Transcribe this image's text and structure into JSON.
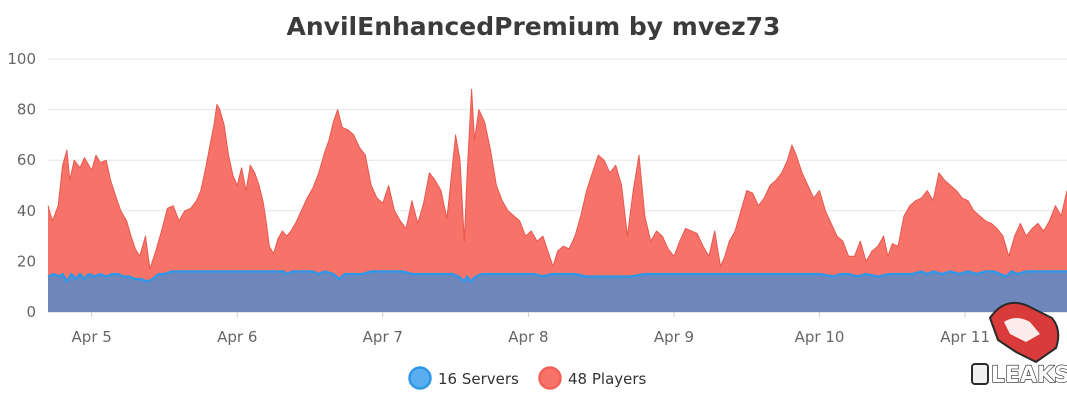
{
  "chart_data": {
    "type": "area",
    "title": "AnvilEnhancedPremium by mvez73",
    "ylim": [
      0,
      100
    ],
    "y_ticks": [
      0,
      20,
      40,
      60,
      80,
      100
    ],
    "xlim": [
      4.7,
      11.7
    ],
    "x_ticks": [
      {
        "value": 5,
        "label": "Apr 5"
      },
      {
        "value": 6,
        "label": "Apr 6"
      },
      {
        "value": 7,
        "label": "Apr 7"
      },
      {
        "value": 8,
        "label": "Apr 8"
      },
      {
        "value": 9,
        "label": "Apr 9"
      },
      {
        "value": 10,
        "label": "Apr 10"
      },
      {
        "value": 11,
        "label": "Apr 11"
      }
    ],
    "grid": true,
    "legend_position": "bottom-center",
    "series": [
      {
        "name": "Players",
        "legend_label": "48 Players",
        "color": "#f7736a",
        "points": [
          [
            4.7,
            42
          ],
          [
            4.73,
            36
          ],
          [
            4.77,
            42
          ],
          [
            4.8,
            58
          ],
          [
            4.83,
            64
          ],
          [
            4.85,
            52
          ],
          [
            4.88,
            60
          ],
          [
            4.92,
            57
          ],
          [
            4.95,
            61
          ],
          [
            4.98,
            58
          ],
          [
            5.0,
            56
          ],
          [
            5.03,
            62
          ],
          [
            5.06,
            59
          ],
          [
            5.1,
            60
          ],
          [
            5.13,
            52
          ],
          [
            5.17,
            45
          ],
          [
            5.2,
            40
          ],
          [
            5.24,
            36
          ],
          [
            5.27,
            30
          ],
          [
            5.3,
            25
          ],
          [
            5.33,
            22
          ],
          [
            5.37,
            30
          ],
          [
            5.4,
            17
          ],
          [
            5.44,
            24
          ],
          [
            5.48,
            32
          ],
          [
            5.52,
            41
          ],
          [
            5.56,
            42
          ],
          [
            5.6,
            36
          ],
          [
            5.64,
            40
          ],
          [
            5.68,
            41
          ],
          [
            5.72,
            44
          ],
          [
            5.75,
            48
          ],
          [
            5.78,
            56
          ],
          [
            5.81,
            65
          ],
          [
            5.84,
            74
          ],
          [
            5.86,
            82
          ],
          [
            5.88,
            80
          ],
          [
            5.91,
            74
          ],
          [
            5.94,
            62
          ],
          [
            5.97,
            54
          ],
          [
            6.0,
            50
          ],
          [
            6.03,
            57
          ],
          [
            6.06,
            48
          ],
          [
            6.09,
            58
          ],
          [
            6.12,
            55
          ],
          [
            6.15,
            50
          ],
          [
            6.18,
            43
          ],
          [
            6.2,
            35
          ],
          [
            6.22,
            26
          ],
          [
            6.25,
            23
          ],
          [
            6.28,
            29
          ],
          [
            6.31,
            32
          ],
          [
            6.34,
            30
          ],
          [
            6.37,
            32
          ],
          [
            6.4,
            35
          ],
          [
            6.44,
            40
          ],
          [
            6.48,
            45
          ],
          [
            6.52,
            49
          ],
          [
            6.56,
            55
          ],
          [
            6.6,
            63
          ],
          [
            6.63,
            68
          ],
          [
            6.66,
            75
          ],
          [
            6.69,
            80
          ],
          [
            6.72,
            73
          ],
          [
            6.76,
            72
          ],
          [
            6.8,
            70
          ],
          [
            6.84,
            65
          ],
          [
            6.88,
            62
          ],
          [
            6.92,
            50
          ],
          [
            6.96,
            45
          ],
          [
            7.0,
            43
          ],
          [
            7.04,
            50
          ],
          [
            7.08,
            40
          ],
          [
            7.12,
            36
          ],
          [
            7.16,
            33
          ],
          [
            7.2,
            44
          ],
          [
            7.24,
            35
          ],
          [
            7.28,
            43
          ],
          [
            7.32,
            55
          ],
          [
            7.36,
            52
          ],
          [
            7.4,
            48
          ],
          [
            7.44,
            37
          ],
          [
            7.47,
            53
          ],
          [
            7.5,
            70
          ],
          [
            7.53,
            60
          ],
          [
            7.56,
            28
          ],
          [
            7.58,
            55
          ],
          [
            7.61,
            88
          ],
          [
            7.63,
            68
          ],
          [
            7.66,
            80
          ],
          [
            7.7,
            75
          ],
          [
            7.74,
            64
          ],
          [
            7.78,
            50
          ],
          [
            7.82,
            44
          ],
          [
            7.86,
            40
          ],
          [
            7.9,
            38
          ],
          [
            7.94,
            36
          ],
          [
            7.98,
            30
          ],
          [
            8.02,
            32
          ],
          [
            8.06,
            28
          ],
          [
            8.1,
            30
          ],
          [
            8.14,
            23
          ],
          [
            8.17,
            18
          ],
          [
            8.2,
            24
          ],
          [
            8.24,
            26
          ],
          [
            8.28,
            25
          ],
          [
            8.32,
            30
          ],
          [
            8.36,
            38
          ],
          [
            8.4,
            48
          ],
          [
            8.44,
            55
          ],
          [
            8.48,
            62
          ],
          [
            8.52,
            60
          ],
          [
            8.56,
            55
          ],
          [
            8.6,
            58
          ],
          [
            8.64,
            50
          ],
          [
            8.68,
            30
          ],
          [
            8.72,
            48
          ],
          [
            8.76,
            62
          ],
          [
            8.8,
            38
          ],
          [
            8.84,
            28
          ],
          [
            8.88,
            32
          ],
          [
            8.92,
            30
          ],
          [
            8.96,
            25
          ],
          [
            9.0,
            22
          ],
          [
            9.04,
            28
          ],
          [
            9.08,
            33
          ],
          [
            9.12,
            32
          ],
          [
            9.16,
            31
          ],
          [
            9.2,
            26
          ],
          [
            9.24,
            22
          ],
          [
            9.28,
            32
          ],
          [
            9.32,
            18
          ],
          [
            9.35,
            22
          ],
          [
            9.38,
            28
          ],
          [
            9.42,
            32
          ],
          [
            9.46,
            40
          ],
          [
            9.5,
            48
          ],
          [
            9.54,
            47
          ],
          [
            9.58,
            42
          ],
          [
            9.62,
            45
          ],
          [
            9.66,
            50
          ],
          [
            9.7,
            52
          ],
          [
            9.74,
            55
          ],
          [
            9.78,
            60
          ],
          [
            9.81,
            66
          ],
          [
            9.84,
            62
          ],
          [
            9.88,
            55
          ],
          [
            9.92,
            50
          ],
          [
            9.96,
            45
          ],
          [
            10.0,
            48
          ],
          [
            10.04,
            40
          ],
          [
            10.08,
            35
          ],
          [
            10.12,
            30
          ],
          [
            10.16,
            28
          ],
          [
            10.2,
            22
          ],
          [
            10.24,
            22
          ],
          [
            10.28,
            28
          ],
          [
            10.32,
            20
          ],
          [
            10.36,
            24
          ],
          [
            10.4,
            26
          ],
          [
            10.44,
            30
          ],
          [
            10.47,
            22
          ],
          [
            10.5,
            27
          ],
          [
            10.54,
            26
          ],
          [
            10.58,
            38
          ],
          [
            10.62,
            42
          ],
          [
            10.66,
            44
          ],
          [
            10.7,
            45
          ],
          [
            10.74,
            48
          ],
          [
            10.78,
            44
          ],
          [
            10.82,
            55
          ],
          [
            10.86,
            52
          ],
          [
            10.9,
            50
          ],
          [
            10.94,
            48
          ],
          [
            10.98,
            45
          ],
          [
            11.02,
            44
          ],
          [
            11.06,
            40
          ],
          [
            11.1,
            38
          ],
          [
            11.14,
            36
          ],
          [
            11.18,
            35
          ],
          [
            11.22,
            33
          ],
          [
            11.26,
            30
          ],
          [
            11.3,
            22
          ],
          [
            11.34,
            30
          ],
          [
            11.38,
            35
          ],
          [
            11.42,
            30
          ],
          [
            11.46,
            33
          ],
          [
            11.5,
            35
          ],
          [
            11.54,
            32
          ],
          [
            11.58,
            36
          ],
          [
            11.62,
            42
          ],
          [
            11.66,
            38
          ],
          [
            11.7,
            48
          ]
        ]
      },
      {
        "name": "Servers",
        "legend_label": "16 Servers",
        "color": "#2f97e6",
        "points": [
          [
            4.7,
            14
          ],
          [
            4.74,
            15
          ],
          [
            4.78,
            14
          ],
          [
            4.8,
            15
          ],
          [
            4.83,
            12
          ],
          [
            4.86,
            15
          ],
          [
            4.89,
            13
          ],
          [
            4.92,
            15
          ],
          [
            4.95,
            13
          ],
          [
            4.98,
            15
          ],
          [
            5.02,
            14
          ],
          [
            5.06,
            15
          ],
          [
            5.1,
            14
          ],
          [
            5.14,
            15
          ],
          [
            5.18,
            15
          ],
          [
            5.22,
            14
          ],
          [
            5.26,
            14
          ],
          [
            5.3,
            13
          ],
          [
            5.34,
            13
          ],
          [
            5.38,
            12
          ],
          [
            5.42,
            13
          ],
          [
            5.46,
            15
          ],
          [
            5.5,
            15
          ],
          [
            5.55,
            16
          ],
          [
            5.65,
            16
          ],
          [
            5.75,
            16
          ],
          [
            5.85,
            16
          ],
          [
            5.95,
            16
          ],
          [
            6.05,
            16
          ],
          [
            6.15,
            16
          ],
          [
            6.25,
            16
          ],
          [
            6.32,
            16
          ],
          [
            6.34,
            15
          ],
          [
            6.38,
            16
          ],
          [
            6.45,
            16
          ],
          [
            6.52,
            16
          ],
          [
            6.56,
            15
          ],
          [
            6.6,
            16
          ],
          [
            6.66,
            15
          ],
          [
            6.7,
            13
          ],
          [
            6.74,
            15
          ],
          [
            6.8,
            15
          ],
          [
            6.86,
            15
          ],
          [
            6.92,
            16
          ],
          [
            7.0,
            16
          ],
          [
            7.08,
            16
          ],
          [
            7.14,
            16
          ],
          [
            7.2,
            15
          ],
          [
            7.26,
            15
          ],
          [
            7.34,
            15
          ],
          [
            7.4,
            15
          ],
          [
            7.48,
            15
          ],
          [
            7.52,
            14
          ],
          [
            7.56,
            12
          ],
          [
            7.58,
            14
          ],
          [
            7.6,
            12
          ],
          [
            7.64,
            14
          ],
          [
            7.68,
            15
          ],
          [
            7.72,
            15
          ],
          [
            7.8,
            15
          ],
          [
            7.88,
            15
          ],
          [
            7.96,
            15
          ],
          [
            8.04,
            15
          ],
          [
            8.1,
            14
          ],
          [
            8.16,
            15
          ],
          [
            8.24,
            15
          ],
          [
            8.32,
            15
          ],
          [
            8.4,
            14
          ],
          [
            8.5,
            14
          ],
          [
            8.6,
            14
          ],
          [
            8.7,
            14
          ],
          [
            8.8,
            15
          ],
          [
            8.9,
            15
          ],
          [
            9.0,
            15
          ],
          [
            9.1,
            15
          ],
          [
            9.2,
            15
          ],
          [
            9.3,
            15
          ],
          [
            9.4,
            15
          ],
          [
            9.5,
            15
          ],
          [
            9.6,
            15
          ],
          [
            9.7,
            15
          ],
          [
            9.8,
            15
          ],
          [
            9.9,
            15
          ],
          [
            10.0,
            15
          ],
          [
            10.1,
            14
          ],
          [
            10.14,
            15
          ],
          [
            10.2,
            15
          ],
          [
            10.26,
            14
          ],
          [
            10.32,
            15
          ],
          [
            10.4,
            14
          ],
          [
            10.48,
            15
          ],
          [
            10.56,
            15
          ],
          [
            10.64,
            15
          ],
          [
            10.7,
            16
          ],
          [
            10.74,
            15
          ],
          [
            10.78,
            16
          ],
          [
            10.84,
            15
          ],
          [
            10.9,
            16
          ],
          [
            10.96,
            15
          ],
          [
            11.02,
            16
          ],
          [
            11.08,
            15
          ],
          [
            11.14,
            16
          ],
          [
            11.2,
            16
          ],
          [
            11.28,
            14
          ],
          [
            11.32,
            16
          ],
          [
            11.36,
            15
          ],
          [
            11.42,
            16
          ],
          [
            11.5,
            16
          ],
          [
            11.58,
            16
          ],
          [
            11.66,
            16
          ],
          [
            11.7,
            16
          ]
        ]
      }
    ]
  },
  "watermark": {
    "text": "LEAKS",
    "icon": "anvil-logo-icon"
  }
}
